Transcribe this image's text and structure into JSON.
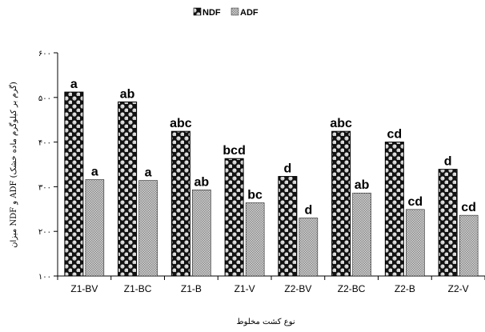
{
  "chart_data": {
    "type": "bar",
    "categories": [
      "Z1-BV",
      "Z1-BC",
      "Z1-B",
      "Z1-V",
      "Z2-BV",
      "Z2-BC",
      "Z2-B",
      "Z2-V"
    ],
    "series": [
      {
        "name": "NDF",
        "values": [
          512,
          490,
          424,
          363,
          323,
          424,
          400,
          339
        ],
        "letters": [
          "a",
          "ab",
          "abc",
          "bcd",
          "d",
          "abc",
          "cd",
          "d"
        ]
      },
      {
        "name": "ADF",
        "values": [
          316,
          314,
          293,
          264,
          230,
          286,
          249,
          236
        ],
        "letters": [
          "a",
          "a",
          "ab",
          "bc",
          "d",
          "ab",
          "cd",
          "cd"
        ]
      }
    ],
    "yticks": [
      "۱۰۰",
      "۲۰۰",
      "۳۰۰",
      "۴۰۰",
      "۵۰۰",
      "۶۰۰"
    ],
    "ylim": [
      100,
      600
    ],
    "xlabel": "نوع کشت مخلوط",
    "ylabel": "میزان NDF و ADF (گرم بر کیلوگرم ماده خشک)",
    "legend_position": "top-center",
    "grid": false
  }
}
